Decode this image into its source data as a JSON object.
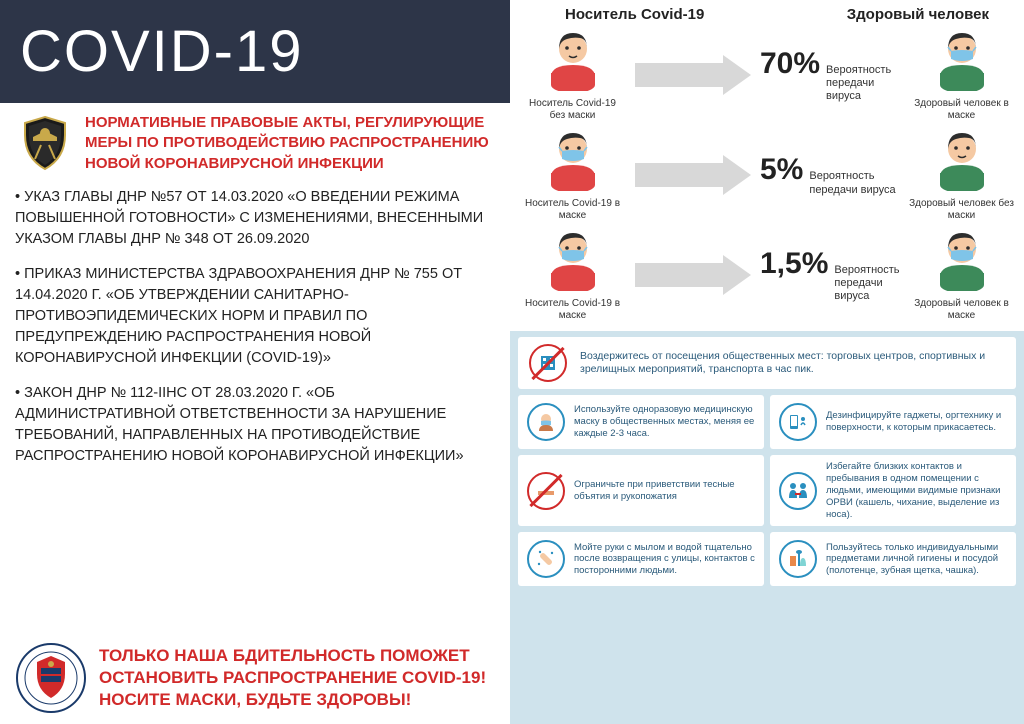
{
  "colors": {
    "banner_bg": "#2d3548",
    "red": "#d12a2a",
    "tips_bg": "#cfe3ec",
    "tip_text": "#2a5a7a",
    "icon_blue": "#2a8fbf",
    "skin": "#f5c9a3",
    "hair": "#2d2d2d",
    "shirt_red": "#e04545",
    "shirt_green": "#3d8a5a",
    "mask": "#7fc4e8",
    "arrow": "#d8d8d8"
  },
  "banner": {
    "title": "COVID-19"
  },
  "header": {
    "text": "НОРМАТИВНЫЕ ПРАВОВЫЕ АКТЫ, РЕГУЛИРУЮЩИЕ МЕРЫ ПО ПРОТИВОДЕЙСТВИЮ РАСПРОСТРАНЕНИЮ НОВОЙ КОРОНАВИРУСНОЙ ИНФЕКЦИИ"
  },
  "bullets": [
    "• УКАЗ ГЛАВЫ ДНР №57 ОТ 14.03.2020 «О ВВЕДЕНИИ РЕЖИМА ПОВЫШЕННОЙ ГОТОВНОСТИ» С ИЗМЕНЕНИЯМИ, ВНЕСЕННЫМИ  УКАЗОМ ГЛАВЫ ДНР № 348 ОТ 26.09.2020",
    "• ПРИКАЗ МИНИСТЕРСТВА ЗДРАВООХРАНЕНИЯ ДНР № 755 ОТ 14.04.2020 Г. «ОБ УТВЕРЖДЕНИИ САНИТАРНО-ПРОТИВОЭПИДЕМИЧЕСКИХ НОРМ И ПРАВИЛ ПО ПРЕДУПРЕЖДЕНИЮ РАСПРОСТРАНЕНИЯ НОВОЙ КОРОНАВИРУСНОЙ ИНФЕКЦИИ (COVID-19)»",
    "• ЗАКОН ДНР № 112-IIНС ОТ 28.03.2020 Г. «ОБ АДМИНИСТРАТИВНОЙ ОТВЕТСТВЕННОСТИ ЗА НАРУШЕНИЕ ТРЕБОВАНИЙ, НАПРАВЛЕННЫХ НА ПРОТИВОДЕЙСТВИЕ РАСПРОСТРАНЕНИЮ НОВОЙ КОРОНАВИРУСНОЙ ИНФЕКЦИИ»"
  ],
  "footer": {
    "text": "ТОЛЬКО НАША БДИТЕЛЬНОСТЬ ПОМОЖЕТ ОСТАНОВИТЬ РАСПРОСТРАНЕНИЕ COVID-19! НОСИТЕ МАСКИ, БУДЬТЕ ЗДОРОВЫ!"
  },
  "transmission": {
    "head_left": "Носитель Covid-19",
    "head_right": "Здоровый человек",
    "prob_label": "Вероятность передачи вируса",
    "rows": [
      {
        "pct": "70%",
        "left_mask": false,
        "right_mask": true,
        "left_cap": "Носитель Covid-19 без маски",
        "right_cap": "Здоровый человек в маске"
      },
      {
        "pct": "5%",
        "left_mask": true,
        "right_mask": false,
        "left_cap": "Носитель Covid-19 в маске",
        "right_cap": "Здоровый человек без маски"
      },
      {
        "pct": "1,5%",
        "left_mask": true,
        "right_mask": true,
        "left_cap": "Носитель Covid-19 в маске",
        "right_cap": "Здоровый человек в маске"
      }
    ]
  },
  "tips": {
    "wide": {
      "icon": "building-ban",
      "text": "Воздержитесь от посещения общественных мест: торговых центров, спортивных и зрелищных мероприятий, транспорта в час пик."
    },
    "grid": [
      {
        "icon": "mask-person",
        "text": "Используйте одноразовую медицинскую маску в общественных местах, меняя ее каждые 2-3 часа."
      },
      {
        "icon": "sanitize",
        "text": "Дезинфицируйте гаджеты, оргтехнику и поверхности, к которым прикасаетесь."
      },
      {
        "icon": "handshake-ban",
        "text": "Ограничьте при приветствии тесные объятия и рукопожатия"
      },
      {
        "icon": "distance",
        "text": "Избегайте близких контактов и пребывания в одном помещении с людьми, имеющими видимые признаки ОРВИ (кашель, чихание, выделение из носа)."
      },
      {
        "icon": "wash-hands",
        "text": "Мойте руки с мылом и водой тщательно после возвращения с улицы, контактов с посторонними людьми."
      },
      {
        "icon": "personal",
        "text": "Пользуйтесь только индивидуальными предметами личной гигиены и посудой (полотенце, зубная щетка, чашка)."
      }
    ]
  }
}
